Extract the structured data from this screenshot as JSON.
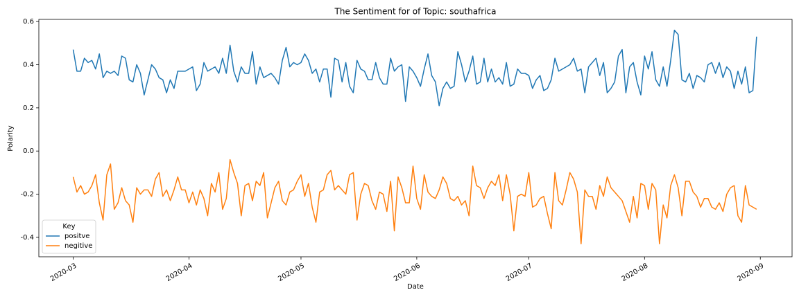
{
  "chart_data": {
    "type": "line",
    "title": "The Sentiment for of Topic: southafrica",
    "xlabel": "Date",
    "ylabel": "Polarity",
    "xlim": [
      -9.2,
      192.5
    ],
    "xticks": [
      {
        "value": 0,
        "label": "2020-03"
      },
      {
        "value": 31,
        "label": "2020-04"
      },
      {
        "value": 61,
        "label": "2020-05"
      },
      {
        "value": 92,
        "label": "2020-06"
      },
      {
        "value": 122,
        "label": "2020-07"
      },
      {
        "value": 153,
        "label": "2020-08"
      },
      {
        "value": 184,
        "label": "2020-09"
      }
    ],
    "ylim": [
      -0.49,
      0.61
    ],
    "yticks": [
      -0.4,
      -0.2,
      {
        "value": 0,
        "label": "0.0"
      },
      0.2,
      0.4,
      0.6
    ],
    "legend": "lower left",
    "legend_title": "Key",
    "series": [
      {
        "name": "positve",
        "color": "#1f77b4",
        "values": [
          0.47,
          0.37,
          0.37,
          0.43,
          0.41,
          0.42,
          0.38,
          0.45,
          0.34,
          0.37,
          0.36,
          0.37,
          0.35,
          0.44,
          0.43,
          0.33,
          0.32,
          0.4,
          0.36,
          0.26,
          0.33,
          0.4,
          0.38,
          0.34,
          0.33,
          0.27,
          0.33,
          0.29,
          0.37,
          0.37,
          0.37,
          0.38,
          0.39,
          0.28,
          0.31,
          0.41,
          0.37,
          0.38,
          0.39,
          0.36,
          0.43,
          0.36,
          0.49,
          0.37,
          0.32,
          0.39,
          0.36,
          0.36,
          0.46,
          0.31,
          0.39,
          0.34,
          0.35,
          0.36,
          0.34,
          0.31,
          0.42,
          0.48,
          0.39,
          0.41,
          0.4,
          0.41,
          0.45,
          0.42,
          0.36,
          0.38,
          0.32,
          0.38,
          0.38,
          0.25,
          0.43,
          0.42,
          0.32,
          0.41,
          0.3,
          0.27,
          0.42,
          0.38,
          0.37,
          0.33,
          0.33,
          0.41,
          0.34,
          0.31,
          0.31,
          0.43,
          0.37,
          0.39,
          0.4,
          0.23,
          0.39,
          0.37,
          0.34,
          0.3,
          0.38,
          0.45,
          0.35,
          0.32,
          0.21,
          0.29,
          0.32,
          0.29,
          0.3,
          0.46,
          0.4,
          0.32,
          0.37,
          0.44,
          0.31,
          0.32,
          0.43,
          0.32,
          0.38,
          0.32,
          0.34,
          0.31,
          0.41,
          0.3,
          0.31,
          0.38,
          0.36,
          0.36,
          0.35,
          0.29,
          0.33,
          0.35,
          0.28,
          0.29,
          0.33,
          0.43,
          0.37,
          0.38,
          0.39,
          0.4,
          0.43,
          0.37,
          0.38,
          0.27,
          0.39,
          0.41,
          0.43,
          0.35,
          0.41,
          0.27,
          0.29,
          0.32,
          0.44,
          0.47,
          0.27,
          0.39,
          0.41,
          0.32,
          0.26,
          0.44,
          0.38,
          0.46,
          0.33,
          0.3,
          0.39,
          0.3,
          0.42,
          0.56,
          0.54,
          0.33,
          0.32,
          0.36,
          0.29,
          0.35,
          0.34,
          0.32,
          0.4,
          0.41,
          0.36,
          0.41,
          0.34,
          0.39,
          0.37,
          0.29,
          0.37,
          0.31,
          0.39,
          0.27,
          0.28,
          0.53
        ]
      },
      {
        "name": "negitive",
        "color": "#ff7f0e",
        "values": [
          -0.12,
          -0.19,
          -0.16,
          -0.2,
          -0.19,
          -0.16,
          -0.11,
          -0.24,
          -0.32,
          -0.11,
          -0.06,
          -0.27,
          -0.24,
          -0.17,
          -0.23,
          -0.25,
          -0.33,
          -0.17,
          -0.2,
          -0.18,
          -0.18,
          -0.21,
          -0.13,
          -0.1,
          -0.21,
          -0.18,
          -0.23,
          -0.18,
          -0.12,
          -0.18,
          -0.18,
          -0.24,
          -0.19,
          -0.25,
          -0.18,
          -0.22,
          -0.3,
          -0.15,
          -0.19,
          -0.1,
          -0.27,
          -0.22,
          -0.04,
          -0.1,
          -0.15,
          -0.3,
          -0.16,
          -0.15,
          -0.23,
          -0.14,
          -0.16,
          -0.1,
          -0.31,
          -0.24,
          -0.17,
          -0.14,
          -0.23,
          -0.25,
          -0.19,
          -0.18,
          -0.14,
          -0.11,
          -0.21,
          -0.15,
          -0.26,
          -0.33,
          -0.19,
          -0.18,
          -0.11,
          -0.09,
          -0.18,
          -0.16,
          -0.18,
          -0.2,
          -0.11,
          -0.1,
          -0.32,
          -0.2,
          -0.15,
          -0.16,
          -0.23,
          -0.27,
          -0.19,
          -0.2,
          -0.28,
          -0.14,
          -0.37,
          -0.12,
          -0.17,
          -0.24,
          -0.24,
          -0.07,
          -0.22,
          -0.27,
          -0.11,
          -0.19,
          -0.21,
          -0.22,
          -0.18,
          -0.12,
          -0.15,
          -0.22,
          -0.23,
          -0.21,
          -0.25,
          -0.23,
          -0.3,
          -0.07,
          -0.16,
          -0.17,
          -0.22,
          -0.17,
          -0.14,
          -0.16,
          -0.11,
          -0.23,
          -0.11,
          -0.2,
          -0.37,
          -0.21,
          -0.2,
          -0.21,
          -0.1,
          -0.26,
          -0.25,
          -0.22,
          -0.21,
          -0.29,
          -0.36,
          -0.1,
          -0.23,
          -0.25,
          -0.18,
          -0.1,
          -0.13,
          -0.19,
          -0.43,
          -0.18,
          -0.21,
          -0.21,
          -0.27,
          -0.16,
          -0.21,
          -0.12,
          -0.17,
          -0.19,
          -0.21,
          -0.23,
          -0.28,
          -0.33,
          -0.21,
          -0.31,
          -0.15,
          -0.16,
          -0.27,
          -0.15,
          -0.18,
          -0.43,
          -0.25,
          -0.31,
          -0.16,
          -0.11,
          -0.17,
          -0.3,
          -0.14,
          -0.14,
          -0.19,
          -0.21,
          -0.26,
          -0.22,
          -0.22,
          -0.26,
          -0.27,
          -0.24,
          -0.28,
          -0.2,
          -0.17,
          -0.16,
          -0.3,
          -0.33,
          -0.16,
          -0.25,
          -0.26,
          -0.27
        ]
      }
    ]
  }
}
